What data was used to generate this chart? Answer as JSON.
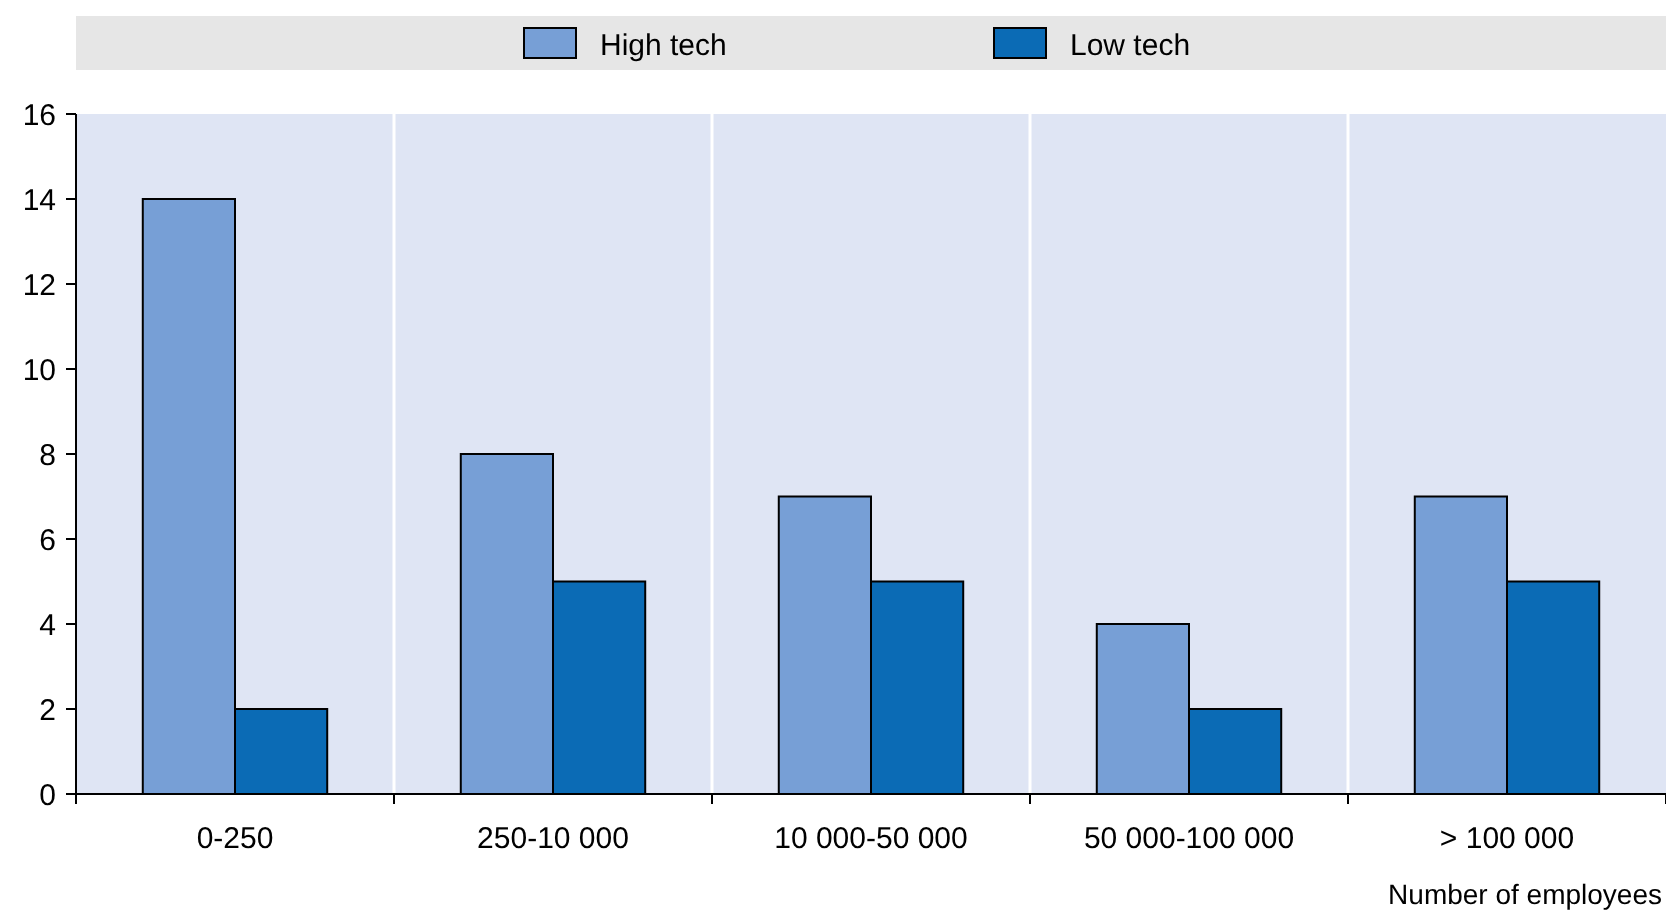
{
  "chart_data": {
    "type": "bar",
    "xlabel": "Number of employees",
    "categories": [
      "0-250",
      "250-10 000",
      "10 000-50 000",
      "50 000-100 000",
      "> 100 000"
    ],
    "series": [
      {
        "name": "High tech",
        "color": "#779fd6",
        "values": [
          14,
          8,
          7,
          4,
          7
        ]
      },
      {
        "name": "Low tech",
        "color": "#0b6bb5",
        "values": [
          2,
          5,
          5,
          2,
          5
        ]
      }
    ],
    "ylim": [
      0,
      16
    ],
    "yticks": [
      0,
      2,
      4,
      6,
      8,
      10,
      12,
      14,
      16
    ],
    "grid": "x",
    "legend": "top"
  }
}
